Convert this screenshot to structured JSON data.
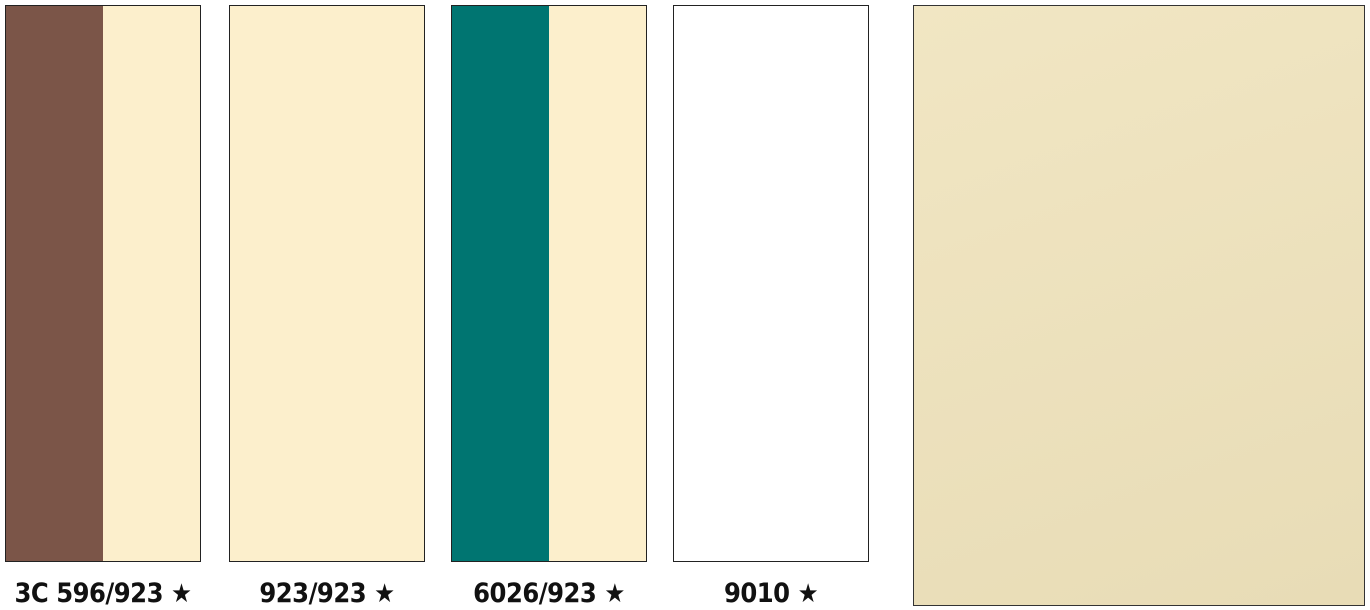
{
  "swatches": [
    {
      "code": "3C 596/923",
      "star": "★",
      "colors": [
        "#7b5548",
        "#fcefcc"
      ]
    },
    {
      "code": "923/923",
      "star": "★",
      "colors": [
        "#fcefcc"
      ]
    },
    {
      "code": "6026/923",
      "star": "★",
      "colors": [
        "#007571",
        "#fcefcc"
      ]
    },
    {
      "code": "9010",
      "star": "★",
      "colors": [
        "#ffffff"
      ]
    }
  ],
  "sample": {
    "colors": [
      "#f1e6c3",
      "#e8dcb6"
    ]
  }
}
